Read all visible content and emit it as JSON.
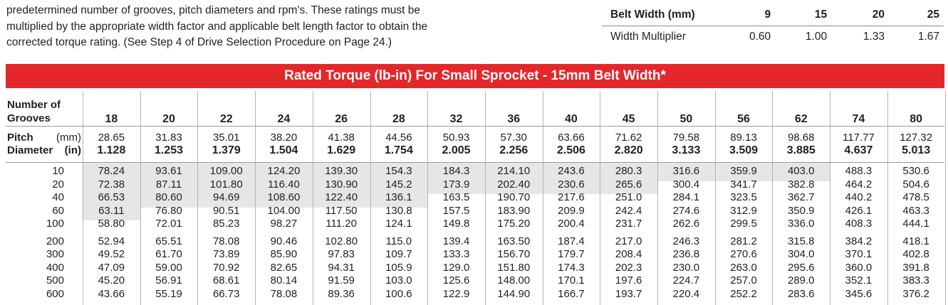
{
  "intro": {
    "lines": [
      "predetermined number of grooves, pitch diameters and rpm’s.  These ratings must be",
      "multiplied by the appropriate width factor and applicable belt length factor to obtain the",
      "corrected torque rating.  (See Step 4 of Drive Selection Procedure on Page 24.)"
    ]
  },
  "width_table": {
    "header_label": "Belt Width (mm)",
    "widths": [
      "9",
      "15",
      "20",
      "25"
    ],
    "row_label": "Width Multiplier",
    "multipliers": [
      "0.60",
      "1.00",
      "1.33",
      "1.67"
    ]
  },
  "rated_table": {
    "title": "Rated Torque (lb-in) For Small Sprocket - 15mm Belt Width*",
    "grooves_label_1": "Number of",
    "grooves_label_2": "Grooves",
    "pitch_label": "Pitch",
    "pitch_mm_unit": "(mm)",
    "diameter_label": "Diameter",
    "pitch_in_unit": "(in)",
    "grooves": [
      "18",
      "20",
      "22",
      "24",
      "26",
      "28",
      "32",
      "36",
      "40",
      "45",
      "50",
      "56",
      "62",
      "74",
      "80"
    ],
    "pitch_mm": [
      "28.65",
      "31.83",
      "35.01",
      "38.20",
      "41.38",
      "44.56",
      "50.93",
      "57.30",
      "63.66",
      "71.62",
      "79.58",
      "89.13",
      "98.68",
      "117.77",
      "127.32"
    ],
    "pitch_in": [
      "1.128",
      "1.253",
      "1.379",
      "1.504",
      "1.629",
      "1.754",
      "2.005",
      "2.256",
      "2.506",
      "2.820",
      "3.133",
      "3.509",
      "3.885",
      "4.637",
      "5.013"
    ],
    "rpm": [
      "10",
      "20",
      "40",
      "60",
      "100",
      "200",
      "300",
      "400",
      "500",
      "600"
    ],
    "rows": [
      [
        "78.24",
        "93.61",
        "109.00",
        "124.20",
        "139.30",
        "154.3",
        "184.3",
        "214.10",
        "243.6",
        "280.3",
        "316.6",
        "359.9",
        "403.0",
        "488.3",
        "530.6"
      ],
      [
        "72.38",
        "87.11",
        "101.80",
        "116.40",
        "130.90",
        "145.2",
        "173.9",
        "202.40",
        "230.6",
        "265.6",
        "300.4",
        "341.7",
        "382.8",
        "464.2",
        "504.6"
      ],
      [
        "66.53",
        "80.60",
        "94.69",
        "108.60",
        "122.40",
        "136.1",
        "163.5",
        "190.70",
        "217.6",
        "251.0",
        "284.1",
        "323.5",
        "362.7",
        "440.2",
        "478.5"
      ],
      [
        "63.11",
        "76.80",
        "90.51",
        "104.00",
        "117.50",
        "130.8",
        "157.5",
        "183.90",
        "209.9",
        "242.4",
        "274.6",
        "312.9",
        "350.9",
        "426.1",
        "463.3"
      ],
      [
        "58.80",
        "72.01",
        "85.23",
        "98.27",
        "111.20",
        "124.1",
        "149.8",
        "175.20",
        "200.4",
        "231.7",
        "262.6",
        "299.5",
        "336.0",
        "408.3",
        "444.1"
      ],
      [
        "52.94",
        "65.51",
        "78.08",
        "90.46",
        "102.80",
        "115.0",
        "139.4",
        "163.50",
        "187.4",
        "217.0",
        "246.3",
        "281.2",
        "315.8",
        "384.2",
        "418.1"
      ],
      [
        "49.52",
        "61.70",
        "73.89",
        "85.90",
        "97.83",
        "109.7",
        "133.3",
        "156.70",
        "179.7",
        "208.4",
        "236.8",
        "270.6",
        "304.0",
        "370.1",
        "402.8"
      ],
      [
        "47.09",
        "59.00",
        "70.92",
        "82.65",
        "94.31",
        "105.9",
        "129.0",
        "151.80",
        "174.3",
        "202.3",
        "230.0",
        "263.0",
        "295.6",
        "360.0",
        "391.8"
      ],
      [
        "45.20",
        "56.91",
        "68.61",
        "80.14",
        "91.59",
        "103.0",
        "125.6",
        "148.00",
        "170.1",
        "197.6",
        "224.7",
        "257.0",
        "289.0",
        "352.1",
        "383.3"
      ],
      [
        "43.66",
        "55.19",
        "66.73",
        "78.08",
        "89.36",
        "100.6",
        "122.9",
        "144.90",
        "166.7",
        "193.7",
        "220.4",
        "252.2",
        "283.6",
        "345.6",
        "376.2"
      ]
    ]
  },
  "colors": {
    "banner": "#e4272b",
    "shade": "#e6e6e7",
    "text": "#231f20"
  }
}
